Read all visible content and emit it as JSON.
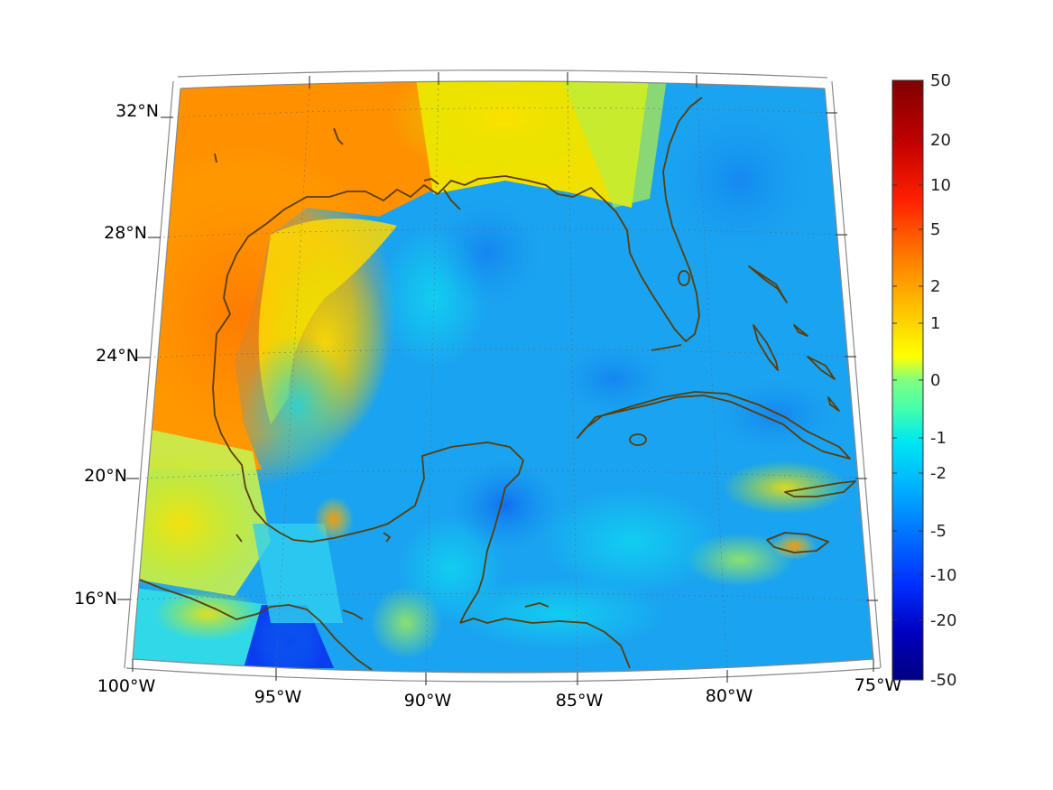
{
  "map": {
    "lat_labels": [
      {
        "lat": 32,
        "text": "32°N"
      },
      {
        "lat": 28,
        "text": "28°N"
      },
      {
        "lat": 24,
        "text": "24°N"
      },
      {
        "lat": 20,
        "text": "20°N"
      },
      {
        "lat": 16,
        "text": "16°N"
      }
    ],
    "lon_labels": [
      {
        "lon": -100,
        "text": "100°W"
      },
      {
        "lon": -95,
        "text": "95°W"
      },
      {
        "lon": -90,
        "text": "90°W"
      },
      {
        "lon": -85,
        "text": "85°W"
      },
      {
        "lon": -80,
        "text": "80°W"
      },
      {
        "lon": -75,
        "text": "75°W"
      }
    ],
    "colors": {
      "land_outline": "#5a3d0a",
      "frame": "#888888",
      "grid": "#666666"
    }
  },
  "colorbar": {
    "labels": [
      "50",
      "20",
      "10",
      "5",
      "2",
      "1",
      "0",
      "-1",
      "-2",
      "-5",
      "-10",
      "-20",
      "-50"
    ]
  }
}
